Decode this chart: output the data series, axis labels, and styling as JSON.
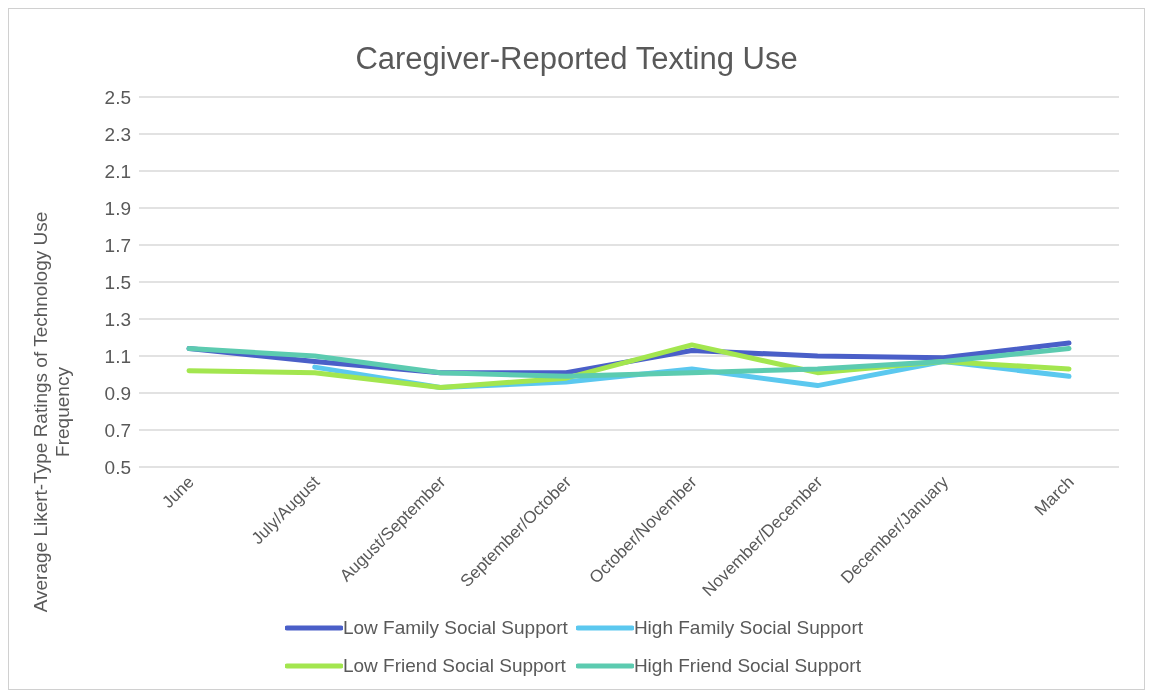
{
  "chart_data": {
    "type": "line",
    "title": "Caregiver-Reported Texting Use",
    "ylabel": "Average Likert-Type Ratings of Technology Use Frequency",
    "categories": [
      "June",
      "July/August",
      "August/September",
      "September/October",
      "October/November",
      "November/December",
      "December/January",
      "March"
    ],
    "series": [
      {
        "name": "Low Family Social Support",
        "color": "#4a5fc8",
        "values": [
          1.14,
          1.07,
          1.01,
          1.01,
          1.13,
          1.1,
          1.09,
          1.17
        ]
      },
      {
        "name": "High Family Social Support",
        "color": "#5bc8ef",
        "values": [
          null,
          1.04,
          0.93,
          0.96,
          1.03,
          0.94,
          1.07,
          0.99
        ]
      },
      {
        "name": "Low Friend Social Support",
        "color": "#a3e64f",
        "values": [
          1.02,
          1.01,
          0.93,
          0.98,
          1.16,
          1.01,
          1.07,
          1.03
        ]
      },
      {
        "name": "High Friend Social Support",
        "color": "#5ccbb0",
        "values": [
          1.14,
          1.1,
          1.01,
          0.99,
          1.01,
          1.03,
          1.07,
          1.14
        ]
      }
    ],
    "ylim": [
      0.5,
      2.5
    ],
    "yticks": [
      0.5,
      0.7,
      0.9,
      1.1,
      1.3,
      1.5,
      1.7,
      1.9,
      2.1,
      2.3,
      2.5
    ],
    "grid": "y",
    "legend": "bottom",
    "marker": "none",
    "line_style": "solid"
  }
}
